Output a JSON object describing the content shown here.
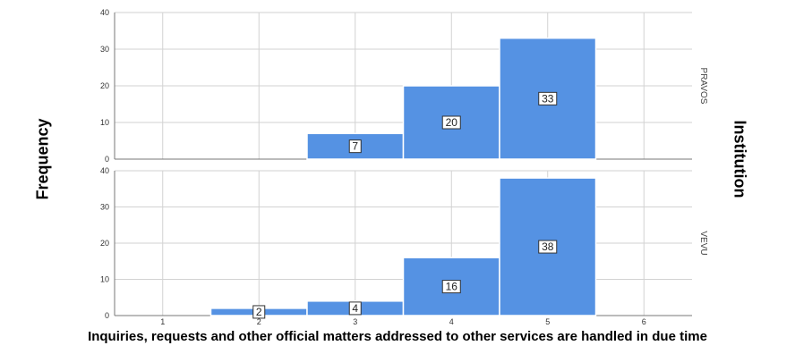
{
  "chart_data": {
    "type": "bar",
    "ylabel": "Frequency",
    "xlabel": "Inquiries, requests and other official matters addressed to other services are handled in due time",
    "facet_label": "Institution",
    "x_ticks": [
      "1",
      "2",
      "3",
      "4",
      "5",
      "6"
    ],
    "xlim": [
      0.5,
      6.5
    ],
    "ylim": [
      0,
      40
    ],
    "y_ticks": [
      "0",
      "10",
      "20",
      "30",
      "40"
    ],
    "grid": true,
    "bar_color": "#5592e3",
    "panels": [
      {
        "name": "PRAVOS",
        "categories": [
          "3",
          "4",
          "5"
        ],
        "x": [
          3,
          4,
          5
        ],
        "values": [
          7,
          20,
          33
        ],
        "labels": [
          "7",
          "20",
          "33"
        ]
      },
      {
        "name": "VEVU",
        "categories": [
          "2",
          "3",
          "4",
          "5"
        ],
        "x": [
          2,
          3,
          4,
          5
        ],
        "values": [
          2,
          4,
          16,
          38
        ],
        "labels": [
          "2",
          "4",
          "16",
          "38"
        ]
      }
    ]
  }
}
